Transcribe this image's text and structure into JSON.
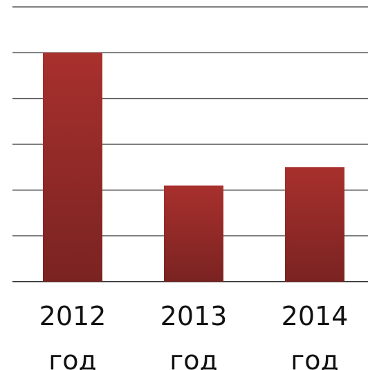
{
  "chart_data": {
    "type": "bar",
    "categories": [
      "2012 год",
      "2013 год",
      "2014 год"
    ],
    "values": [
      5,
      2.1,
      2.5
    ],
    "color": "#a8302d",
    "ylim": [
      0,
      6
    ],
    "yticks": [
      0,
      1,
      2,
      3,
      4,
      5,
      6
    ],
    "grid": true
  }
}
